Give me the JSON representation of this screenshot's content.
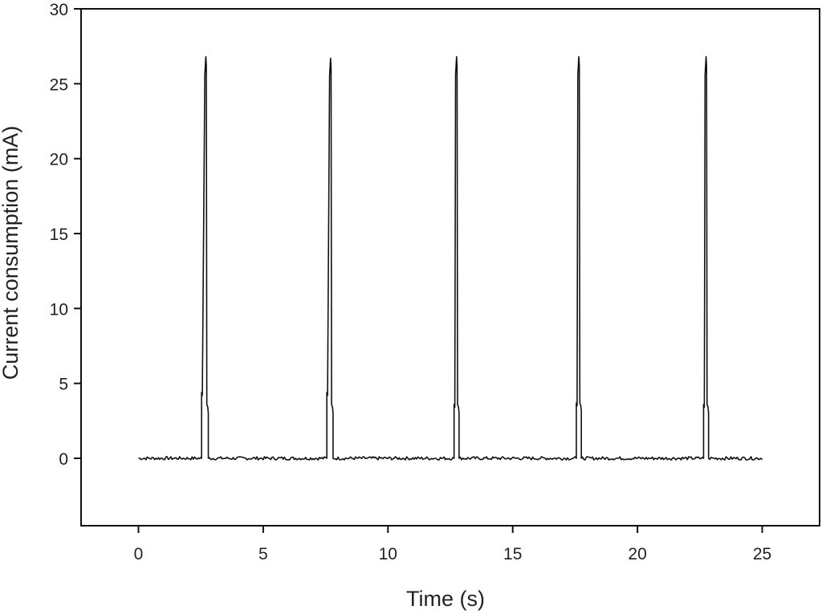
{
  "chart_data": {
    "type": "line",
    "title": "",
    "xlabel": "Time (s)",
    "ylabel": "Current consumption (mA)",
    "xlim": [
      -2.3,
      27.3
    ],
    "ylim": [
      -4.5,
      30
    ],
    "xticks": [
      0,
      5,
      10,
      15,
      20,
      25
    ],
    "yticks": [
      0,
      5,
      10,
      15,
      20,
      25,
      30
    ],
    "xtick_labels": [
      "0",
      "5",
      "10",
      "15",
      "20",
      "25"
    ],
    "ytick_labels": [
      "0",
      "5",
      "10",
      "15",
      "20",
      "25",
      "30"
    ],
    "grid": false,
    "legend": "none",
    "line_color": "#111111",
    "baseline": 0.0,
    "pulses": [
      {
        "start": 2.53,
        "peak_time": 2.7,
        "end": 2.8,
        "peak": 26.8,
        "pre_step": 4.4,
        "post_step": 3.6
      },
      {
        "start": 7.55,
        "peak_time": 7.7,
        "end": 7.8,
        "peak": 26.7,
        "pre_step": 4.4,
        "post_step": 3.6
      },
      {
        "start": 12.65,
        "peak_time": 12.75,
        "end": 12.85,
        "peak": 26.8,
        "pre_step": 3.6,
        "post_step": 3.6
      },
      {
        "start": 17.55,
        "peak_time": 17.65,
        "end": 17.75,
        "peak": 26.8,
        "pre_step": 3.7,
        "post_step": 3.7
      },
      {
        "start": 22.65,
        "peak_time": 22.75,
        "end": 22.85,
        "peak": 26.8,
        "pre_step": 3.6,
        "post_step": 3.6
      }
    ],
    "series": [
      {
        "x_start": 0.0,
        "x_end": 25.0
      }
    ]
  }
}
